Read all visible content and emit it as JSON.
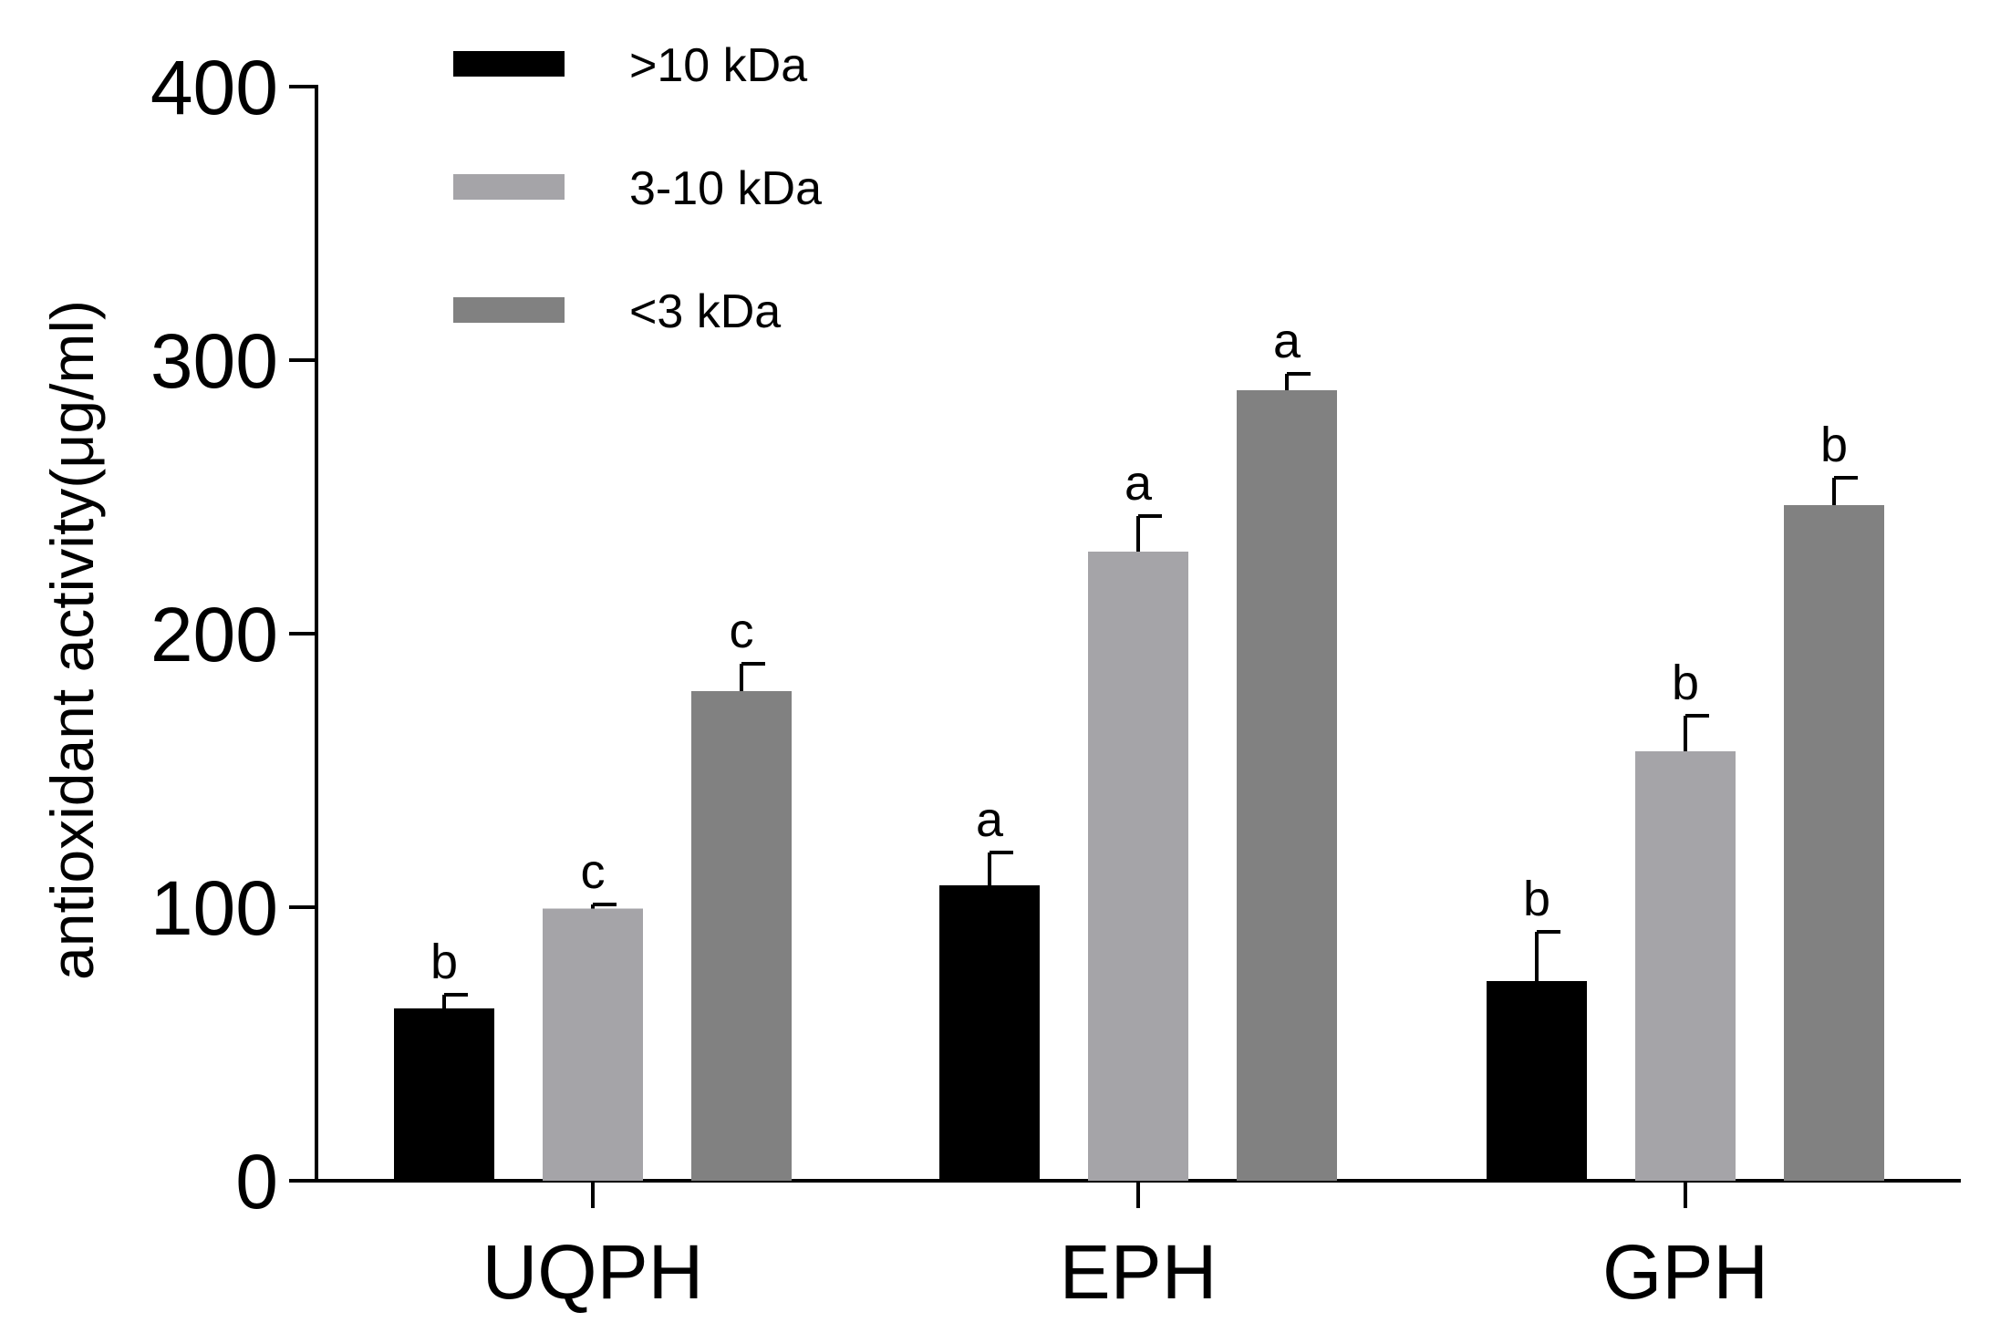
{
  "chart_data": {
    "type": "bar",
    "categories": [
      "UQPH",
      "EPH",
      "GPH"
    ],
    "series": [
      {
        "name": ">10 kDa",
        "color": "#000000",
        "values": [
          63,
          108,
          73
        ],
        "errors": [
          5,
          12,
          18
        ],
        "letters": [
          "b",
          "a",
          "b"
        ]
      },
      {
        "name": "3-10 kDa",
        "color": "#a5a4a8",
        "values": [
          99.5,
          230,
          157
        ],
        "errors": [
          1.5,
          13,
          13
        ],
        "letters": [
          "c",
          "a",
          "b"
        ]
      },
      {
        "name": "<3 kDa",
        "color": "#818181",
        "values": [
          179,
          289,
          247
        ],
        "errors": [
          10,
          6,
          10
        ],
        "letters": [
          "c",
          "a",
          "b"
        ]
      }
    ],
    "title": "",
    "xlabel": "",
    "ylabel": "antioxidant activity(μg/ml)",
    "ylim": [
      0,
      400
    ],
    "yticks": [
      "0",
      "100",
      "200",
      "300",
      "400"
    ],
    "grid": false,
    "legend_position": "top-left"
  }
}
